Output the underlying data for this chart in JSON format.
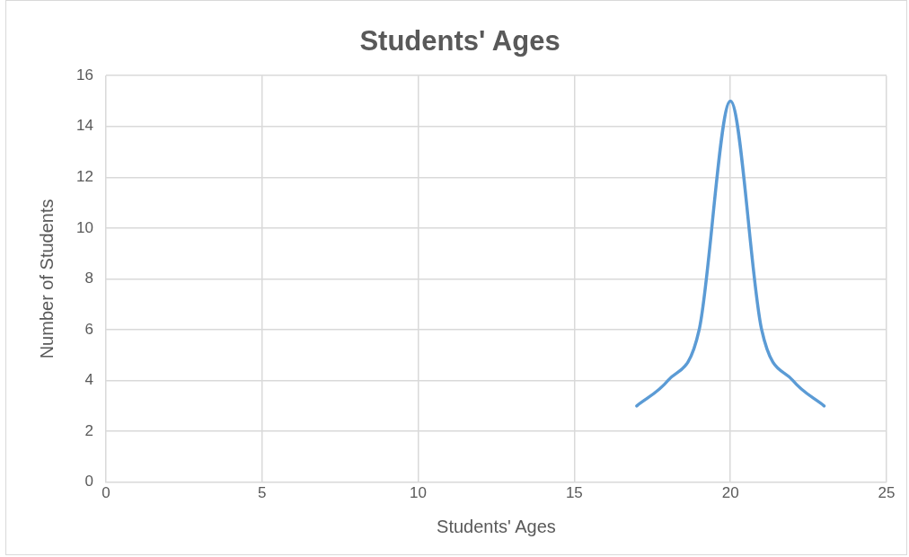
{
  "chart_data": {
    "type": "line",
    "title": "Students' Ages",
    "xlabel": "Students' Ages",
    "ylabel": "Number of Students",
    "x": [
      17,
      18,
      19,
      20,
      21,
      22,
      23
    ],
    "series": [
      {
        "color": "#5b9bd5",
        "values": [
          3,
          4,
          6,
          15,
          6,
          4,
          3
        ]
      }
    ],
    "xlim": [
      0,
      25
    ],
    "xticks": [
      0,
      5,
      10,
      15,
      20,
      25
    ],
    "ylim": [
      0,
      16
    ],
    "yticks": [
      0,
      2,
      4,
      6,
      8,
      10,
      12,
      14,
      16
    ],
    "grid": true,
    "legend": false,
    "marker": "none",
    "line_style": "solid"
  }
}
